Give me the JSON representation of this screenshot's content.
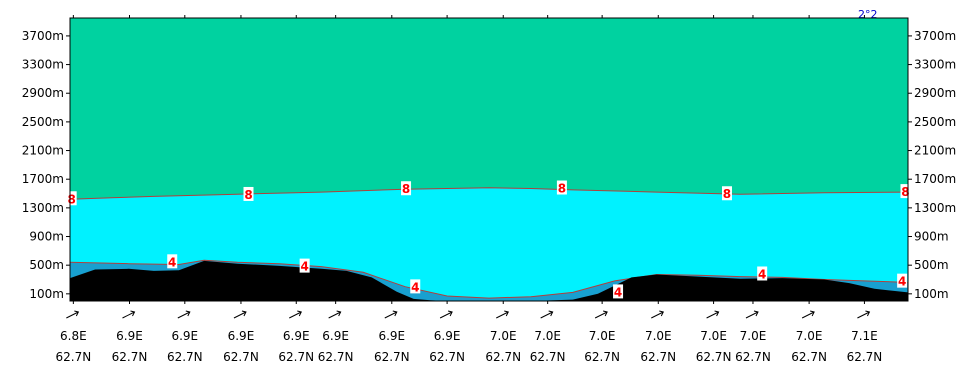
{
  "chart_data": {
    "type": "area",
    "title": "",
    "corner_label": "2°2",
    "y_axis": {
      "unit": "m",
      "ylim": [
        0,
        3950
      ],
      "ticks": [
        {
          "value": 100,
          "label": "100m"
        },
        {
          "value": 500,
          "label": "500m"
        },
        {
          "value": 900,
          "label": "900m"
        },
        {
          "value": 1300,
          "label": "1300m"
        },
        {
          "value": 1700,
          "label": "1700m"
        },
        {
          "value": 2100,
          "label": "2100m"
        },
        {
          "value": 2500,
          "label": "2500m"
        },
        {
          "value": 2900,
          "label": "2900m"
        },
        {
          "value": 3300,
          "label": "3300m"
        },
        {
          "value": 3700,
          "label": "3700m"
        }
      ]
    },
    "x_axis": {
      "xlim": [
        0,
        1
      ],
      "ticks": [
        {
          "pos": 0.004,
          "lon": "6.8E",
          "lat": "62.7N"
        },
        {
          "pos": 0.071,
          "lon": "6.9E",
          "lat": "62.7N"
        },
        {
          "pos": 0.137,
          "lon": "6.9E",
          "lat": "62.7N"
        },
        {
          "pos": 0.204,
          "lon": "6.9E",
          "lat": "62.7N"
        },
        {
          "pos": 0.27,
          "lon": "6.9E",
          "lat": "62.7N"
        },
        {
          "pos": 0.317,
          "lon": "6.9E",
          "lat": "62.7N"
        },
        {
          "pos": 0.384,
          "lon": "6.9E",
          "lat": "62.7N"
        },
        {
          "pos": 0.45,
          "lon": "6.9E",
          "lat": "62.7N"
        },
        {
          "pos": 0.517,
          "lon": "7.0E",
          "lat": "62.7N"
        },
        {
          "pos": 0.57,
          "lon": "7.0E",
          "lat": "62.7N"
        },
        {
          "pos": 0.635,
          "lon": "7.0E",
          "lat": "62.7N"
        },
        {
          "pos": 0.702,
          "lon": "7.0E",
          "lat": "62.7N"
        },
        {
          "pos": 0.768,
          "lon": "7.0E",
          "lat": "62.7N"
        },
        {
          "pos": 0.815,
          "lon": "7.0E",
          "lat": "62.7N"
        },
        {
          "pos": 0.882,
          "lon": "7.0E",
          "lat": "62.7N"
        },
        {
          "pos": 0.948,
          "lon": "7.1E",
          "lat": "62.7N"
        }
      ]
    },
    "fill_colors": {
      "band_upper": "#00d2a0",
      "band_middle": "#00f2ff",
      "band_lower": "#18a0d0",
      "terrain": "#000000",
      "contour_line": "#b0403c",
      "label_text": "#ff0000"
    },
    "series": [
      {
        "level": "8",
        "x": [
          0,
          0.05,
          0.1,
          0.2,
          0.3,
          0.4,
          0.5,
          0.55,
          0.6,
          0.7,
          0.8,
          0.9,
          1
        ],
        "y": [
          1420,
          1440,
          1460,
          1490,
          1520,
          1560,
          1580,
          1570,
          1550,
          1520,
          1490,
          1510,
          1520
        ]
      },
      {
        "level": "4",
        "x": [
          0,
          0.07,
          0.13,
          0.16,
          0.2,
          0.25,
          0.3,
          0.35,
          0.4,
          0.45,
          0.5,
          0.55,
          0.6,
          0.65,
          0.7,
          0.75,
          0.8,
          0.85,
          0.9,
          1
        ],
        "y": [
          540,
          520,
          510,
          570,
          540,
          520,
          480,
          400,
          200,
          70,
          40,
          60,
          120,
          280,
          370,
          360,
          340,
          330,
          300,
          260
        ]
      }
    ],
    "terrain": {
      "x": [
        0,
        0.03,
        0.07,
        0.1,
        0.13,
        0.16,
        0.2,
        0.25,
        0.3,
        0.33,
        0.36,
        0.39,
        0.41,
        0.43,
        0.45,
        0.5,
        0.55,
        0.6,
        0.63,
        0.67,
        0.7,
        0.75,
        0.8,
        0.85,
        0.9,
        0.93,
        0.96,
        1
      ],
      "y": [
        320,
        440,
        450,
        420,
        430,
        560,
        520,
        490,
        450,
        420,
        330,
        130,
        30,
        10,
        0,
        0,
        0,
        20,
        100,
        330,
        370,
        340,
        310,
        320,
        300,
        250,
        170,
        120
      ]
    },
    "contour_labels": [
      {
        "text": "8",
        "x": 0.002,
        "y": 1420
      },
      {
        "text": "8",
        "x": 0.213,
        "y": 1480
      },
      {
        "text": "8",
        "x": 0.401,
        "y": 1560
      },
      {
        "text": "8",
        "x": 0.587,
        "y": 1570
      },
      {
        "text": "8",
        "x": 0.784,
        "y": 1490
      },
      {
        "text": "8",
        "x": 0.997,
        "y": 1520
      },
      {
        "text": "4",
        "x": 0.122,
        "y": 540
      },
      {
        "text": "4",
        "x": 0.28,
        "y": 480
      },
      {
        "text": "4",
        "x": 0.412,
        "y": 190
      },
      {
        "text": "4",
        "x": 0.654,
        "y": 120
      },
      {
        "text": "4",
        "x": 0.826,
        "y": 370
      },
      {
        "text": "4",
        "x": 0.993,
        "y": 270
      }
    ]
  }
}
